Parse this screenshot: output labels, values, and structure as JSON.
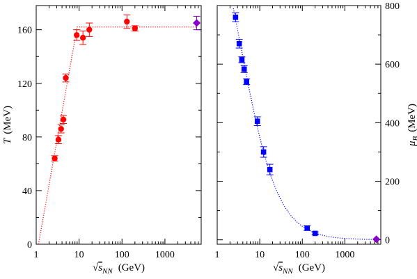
{
  "chart_data": [
    {
      "type": "scatter",
      "xscale": "log",
      "xlim": [
        1,
        7000
      ],
      "ylim": [
        0,
        178
      ],
      "xticks": [
        "1",
        "10",
        "100",
        "1000"
      ],
      "yticks": [
        "0",
        "40",
        "80",
        "120",
        "160"
      ],
      "ytick_values": [
        0,
        40,
        80,
        120,
        160
      ],
      "yaxis_side": "left",
      "ylabel_symbol": "T",
      "ylabel_unit": "(MeV)",
      "xlabel_prefix": "√",
      "xlabel_symbol": "s",
      "xlabel_subscript": "NN",
      "xlabel_unit": "(GeV)",
      "grid": false,
      "colors": {
        "points": "#ff0000",
        "fit": "#ff0000",
        "extrapolation": "#8800cc"
      },
      "series": [
        {
          "marker": "circle",
          "x": [
            2.7,
            3.3,
            3.8,
            4.3,
            4.9,
            8.8,
            12.3,
            17.3,
            130,
            200
          ],
          "y": [
            64,
            78,
            86,
            93,
            124,
            156,
            154,
            160,
            166,
            161
          ],
          "yerr": [
            2,
            3,
            3,
            3,
            3,
            4,
            5,
            5,
            5,
            2
          ]
        },
        {
          "marker": "diamond",
          "x": [
            5500
          ],
          "y": [
            165
          ],
          "yerr": [
            5
          ]
        }
      ],
      "fit": {
        "style": "dotted",
        "form": "linear in log(x), saturating",
        "x": [
          1.13,
          9,
          5500
        ],
        "y": [
          0,
          162,
          162
        ]
      }
    },
    {
      "type": "scatter",
      "xscale": "log",
      "xlim": [
        1,
        7000
      ],
      "ylim": [
        -15,
        800
      ],
      "xticks": [
        "1",
        "10",
        "100",
        "1000"
      ],
      "yticks": [
        "0",
        "200",
        "400",
        "600",
        "800"
      ],
      "ytick_values": [
        0,
        200,
        400,
        600,
        800
      ],
      "yaxis_side": "right",
      "ylabel_symbol": "μ",
      "ylabel_subscript": "B",
      "ylabel_unit": "(MeV)",
      "xlabel_prefix": "√",
      "xlabel_symbol": "s",
      "xlabel_subscript": "NN",
      "xlabel_unit": "(GeV)",
      "grid": false,
      "colors": {
        "points": "#0000ff",
        "fit": "#0000ff",
        "extrapolation": "#8800cc"
      },
      "series": [
        {
          "marker": "square",
          "x": [
            2.7,
            3.3,
            3.8,
            4.3,
            4.9,
            8.8,
            12.3,
            17.3,
            130,
            200
          ],
          "y": [
            760,
            670,
            615,
            583,
            540,
            405,
            300,
            240,
            40,
            22
          ],
          "yerr": [
            15,
            15,
            10,
            12,
            10,
            15,
            18,
            18,
            8,
            5
          ]
        },
        {
          "marker": "diamond",
          "x": [
            5500
          ],
          "y": [
            2
          ],
          "yerr": [
            0
          ]
        }
      ],
      "fit": {
        "style": "dotted",
        "form": "a / (1 + b x)",
        "a": 1308,
        "b": 0.273,
        "xmin": 2.4,
        "xmax": 5500
      }
    }
  ]
}
